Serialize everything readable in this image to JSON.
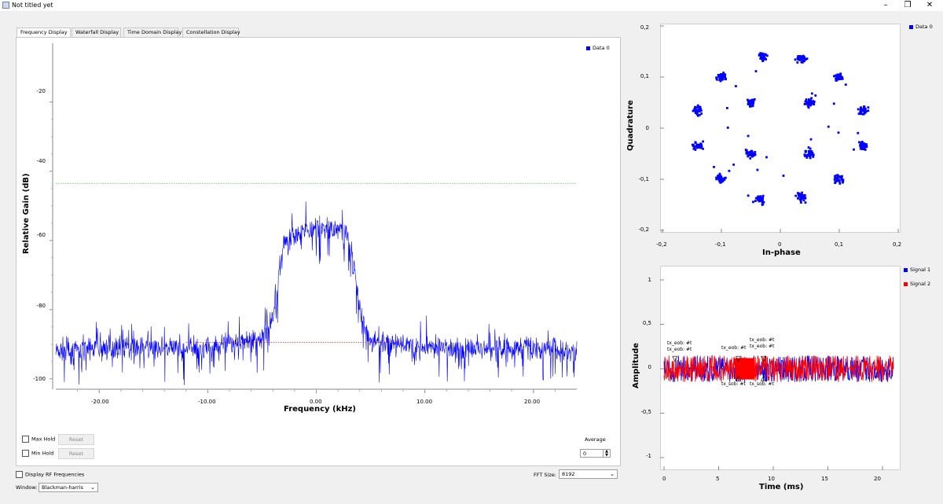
{
  "window": {
    "title": "Not titled yet",
    "controls": [
      "–",
      "❐",
      "✕"
    ]
  },
  "tabs": [
    "Frequency Display",
    "Waterfall Display",
    "Time Domain Display",
    "Constellation Display"
  ],
  "freq_plot": {
    "legend": "Data 0",
    "ylabel": "Relative Gain (dB)",
    "xlabel": "Frequency (kHz)",
    "ytick_labels": [
      "-20",
      "-40",
      "-60",
      "-80",
      "-100"
    ],
    "xtick_labels": [
      "-20.00",
      "-10.00",
      "0.00",
      "10.00",
      "20.00"
    ]
  },
  "controls": {
    "max_hold": "Max Hold",
    "min_hold": "Min Hold",
    "reset": "Reset",
    "average_label": "Average",
    "average_value": "0",
    "display_rf": "Display RF Frequencies",
    "fft_label": "FFT Size:",
    "fft_value": "8192",
    "window_label": "Window:",
    "window_value": "Blackman-harris"
  },
  "const_plot": {
    "legend": "Data 0",
    "xlabel": "In-phase",
    "ylabel": "Quadrature",
    "ytick_labels": [
      "0,2",
      "0,1",
      "0",
      "-0,1",
      "-0,2"
    ],
    "xtick_labels": [
      "-0,2",
      "-0,1",
      "0",
      "0,1",
      "0,2"
    ]
  },
  "time_plot": {
    "legend": [
      "Signal 1",
      "Signal 2"
    ],
    "xlabel": "Time (ms)",
    "ylabel": "Amplitude",
    "ytick_labels": [
      "1",
      "0,5",
      "0",
      "-0,5",
      "-1"
    ],
    "xtick_labels": [
      "0",
      "5",
      "10",
      "15",
      "20"
    ],
    "tags_top": [
      "tx_eob: #t",
      "tx_eob: #t",
      "tx_eob: #t",
      "tx_eob: #t",
      "tx_eob: #t"
    ],
    "tags_bottom": [
      "tx_sob: #t",
      "tx_sob: #t"
    ]
  },
  "colors": {
    "blue": "#0000ff",
    "red": "#ff0000",
    "green_marker": "#22bb44",
    "red_marker": "#cc2222"
  },
  "chart_data": [
    {
      "type": "line",
      "title": "",
      "xlabel": "Frequency (kHz)",
      "ylabel": "Relative Gain (dB)",
      "xlim": [
        -24,
        24
      ],
      "ylim": [
        -103,
        -3
      ],
      "series": [
        {
          "name": "Data 0",
          "x": [
            -24,
            -20,
            -10,
            -5,
            -4,
            -3,
            0,
            3,
            4,
            5,
            10,
            20,
            24
          ],
          "values": [
            -92,
            -91,
            -91,
            -88,
            -83,
            -60,
            -56,
            -58,
            -80,
            -89,
            -91,
            -91,
            -92
          ]
        }
      ],
      "max_marker_db": -43.5,
      "min_marker_db": -89.5
    },
    {
      "type": "scatter",
      "title": "",
      "xlabel": "In-phase",
      "ylabel": "Quadrature",
      "xlim": [
        -0.2,
        0.2
      ],
      "ylim": [
        -0.2,
        0.2
      ],
      "series": [
        {
          "name": "Data 0",
          "points": [
            [
              -0.03,
              0.14
            ],
            [
              0.035,
              0.135
            ],
            [
              -0.1,
              0.1
            ],
            [
              0.1,
              0.1
            ],
            [
              -0.14,
              0.035
            ],
            [
              0.14,
              0.035
            ],
            [
              -0.14,
              -0.035
            ],
            [
              0.14,
              -0.035
            ],
            [
              -0.1,
              -0.1
            ],
            [
              0.1,
              -0.1
            ],
            [
              -0.035,
              -0.14
            ],
            [
              0.035,
              -0.135
            ],
            [
              -0.05,
              0.05
            ],
            [
              0.05,
              0.05
            ],
            [
              -0.05,
              -0.05
            ],
            [
              0.05,
              -0.05
            ]
          ]
        }
      ]
    },
    {
      "type": "line",
      "title": "",
      "xlabel": "Time (ms)",
      "ylabel": "Amplitude",
      "xlim": [
        0,
        21
      ],
      "ylim": [
        -1.1,
        1.1
      ],
      "series": [
        {
          "name": "Signal 1",
          "range": [
            -0.15,
            0.15
          ]
        },
        {
          "name": "Signal 2",
          "range": [
            -0.15,
            0.15
          ]
        }
      ]
    }
  ]
}
